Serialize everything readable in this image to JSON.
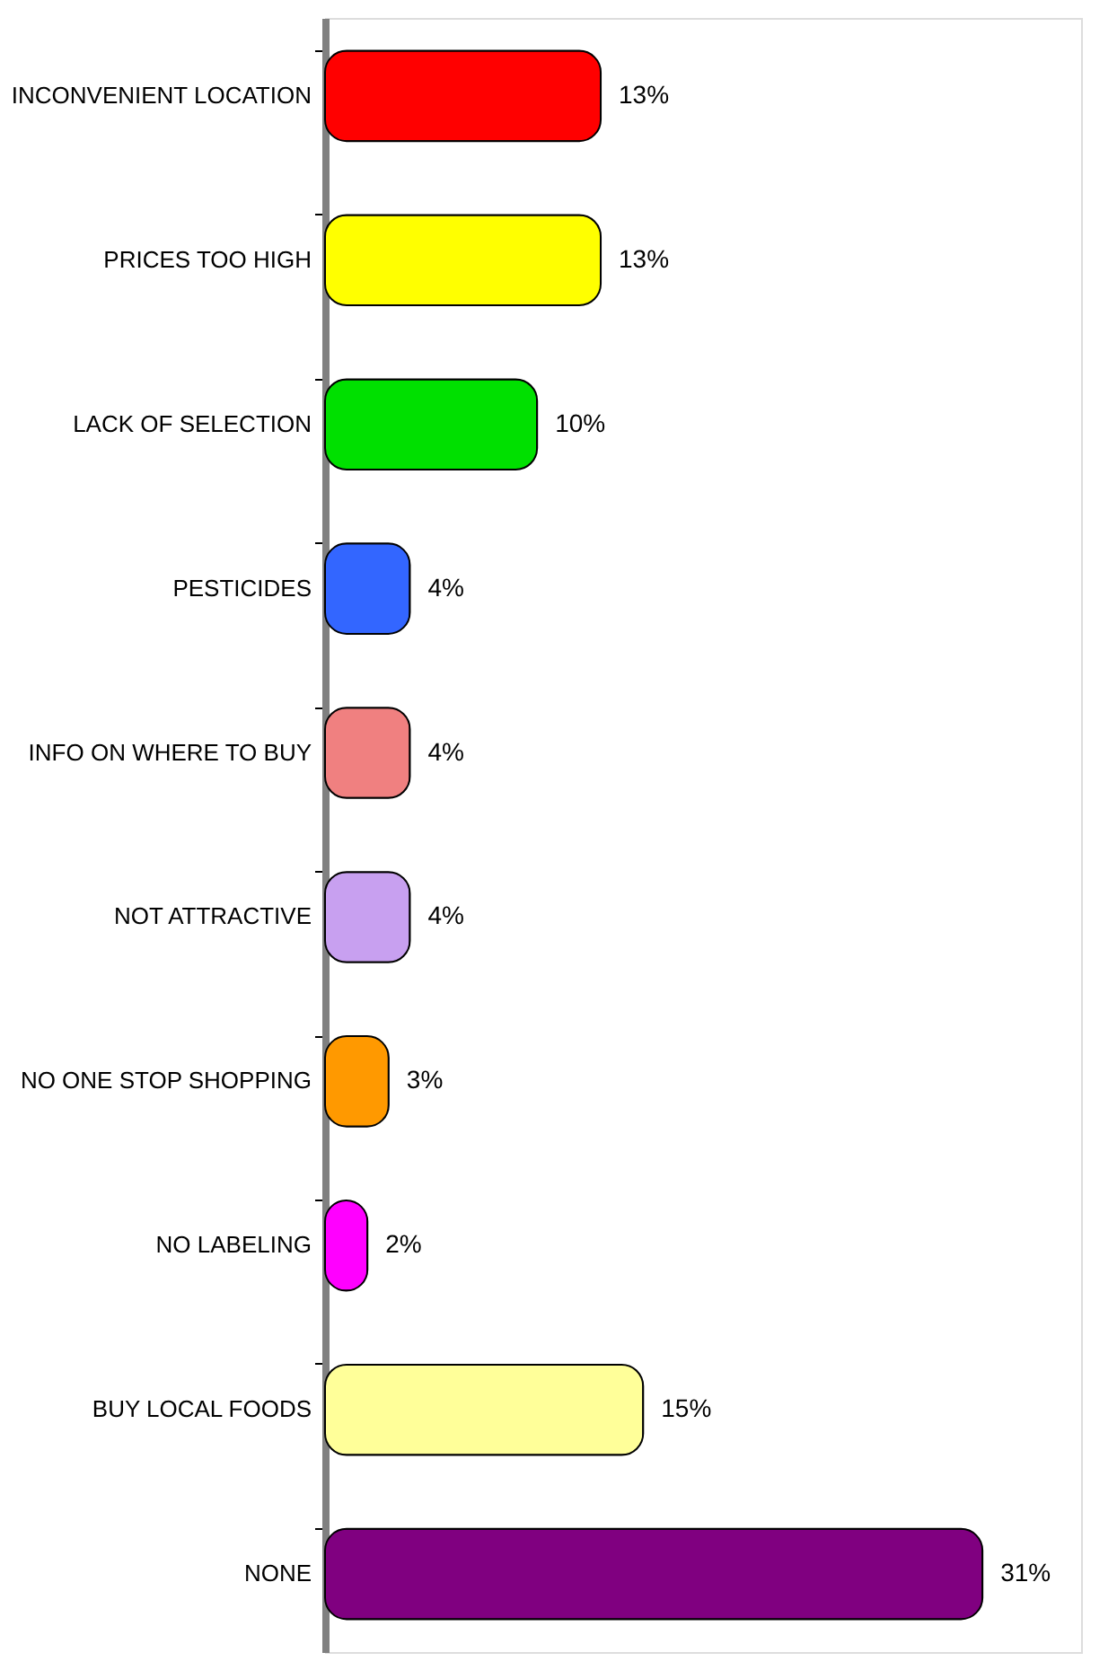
{
  "chart_data": {
    "type": "bar",
    "orientation": "horizontal",
    "categories": [
      "INCONVENIENT LOCATION",
      "PRICES TOO HIGH",
      "LACK OF SELECTION",
      "PESTICIDES",
      "INFO ON WHERE TO BUY",
      "NOT ATTRACTIVE",
      "NO ONE STOP SHOPPING",
      "NO LABELING",
      "BUY LOCAL FOODS",
      "NONE"
    ],
    "values": [
      13,
      13,
      10,
      4,
      4,
      4,
      3,
      2,
      15,
      31
    ],
    "value_labels": [
      "13%",
      "13%",
      "10%",
      "4%",
      "4%",
      "4%",
      "3%",
      "2%",
      "15%",
      "31%"
    ],
    "colors": [
      "#ff0000",
      "#ffff00",
      "#00e000",
      "#3366ff",
      "#f08080",
      "#c8a0f0",
      "#ff9900",
      "#ff00ff",
      "#ffff99",
      "#800080"
    ],
    "grid": false
  }
}
